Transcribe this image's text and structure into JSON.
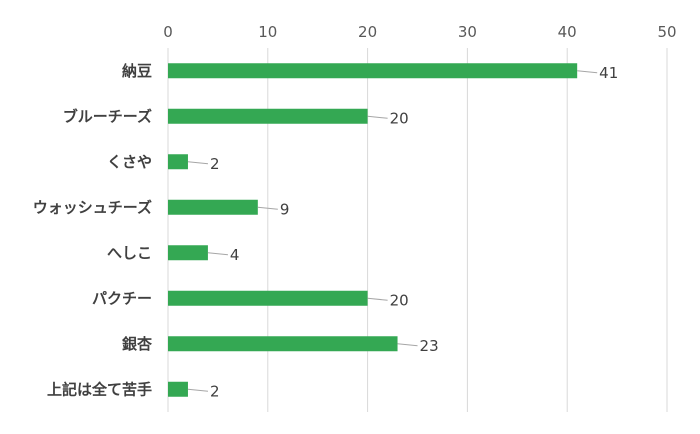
{
  "chart_data": {
    "type": "bar",
    "orientation": "horizontal",
    "categories": [
      "納豆",
      "ブルーチーズ",
      "くさや",
      "ウォッシュチーズ",
      "へしこ",
      "パクチー",
      "銀杏",
      "上記は全て苦手"
    ],
    "values": [
      41,
      20,
      2,
      9,
      4,
      20,
      23,
      2
    ],
    "xlim": [
      0,
      50
    ],
    "x_ticks": [
      0,
      10,
      20,
      30,
      40,
      50
    ],
    "x_axis_position": "top",
    "grid": true,
    "data_labels": true,
    "legend": false,
    "title": "",
    "xlabel": "",
    "ylabel": "",
    "colors": {
      "bar": "#34a853",
      "grid": "#d9d9d9",
      "leader": "#a6a6a6"
    }
  }
}
